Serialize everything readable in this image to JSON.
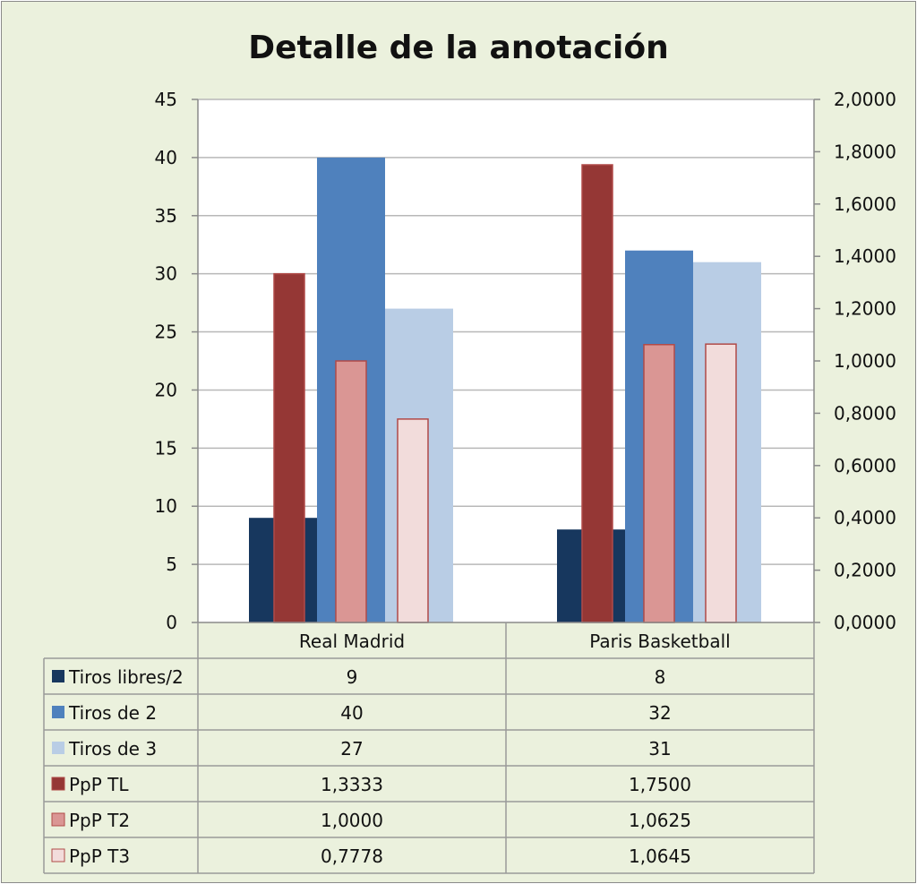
{
  "chart_data": {
    "type": "bar",
    "title": "Detalle de la anotación",
    "categories": [
      "Real Madrid",
      "Paris Basketball"
    ],
    "y_left": {
      "min": 0,
      "max": 45,
      "step": 5,
      "ticks": [
        "0",
        "5",
        "10",
        "15",
        "20",
        "25",
        "30",
        "35",
        "40",
        "45"
      ]
    },
    "y_right": {
      "min": 0,
      "max": 2,
      "step": 0.2,
      "ticks": [
        "0,0000",
        "0,2000",
        "0,4000",
        "0,6000",
        "0,8000",
        "1,0000",
        "1,2000",
        "1,4000",
        "1,6000",
        "1,8000",
        "2,0000"
      ]
    },
    "grid": true,
    "legend_placement": "data-table",
    "series": [
      {
        "name": "Tiros libres/2",
        "axis": "left",
        "values": [
          9,
          8
        ],
        "labels": [
          "9",
          "8"
        ],
        "color": "#17375e"
      },
      {
        "name": "Tiros de 2",
        "axis": "left",
        "values": [
          40,
          32
        ],
        "labels": [
          "40",
          "32"
        ],
        "color": "#4f81bd"
      },
      {
        "name": "Tiros de 3",
        "axis": "left",
        "values": [
          27,
          31
        ],
        "labels": [
          "27",
          "31"
        ],
        "color": "#b9cde5"
      },
      {
        "name": "PpP TL",
        "axis": "right",
        "values": [
          1.3333,
          1.75
        ],
        "labels": [
          "1,3333",
          "1,7500"
        ],
        "color": "#953735"
      },
      {
        "name": "PpP T2",
        "axis": "right",
        "values": [
          1.0,
          1.0625
        ],
        "labels": [
          "1,0000",
          "1,0625"
        ],
        "color": "#da9694"
      },
      {
        "name": "PpP T3",
        "axis": "right",
        "values": [
          0.7778,
          1.0645
        ],
        "labels": [
          "0,7778",
          "1,0645"
        ],
        "color": "#f2dcdb"
      }
    ]
  }
}
